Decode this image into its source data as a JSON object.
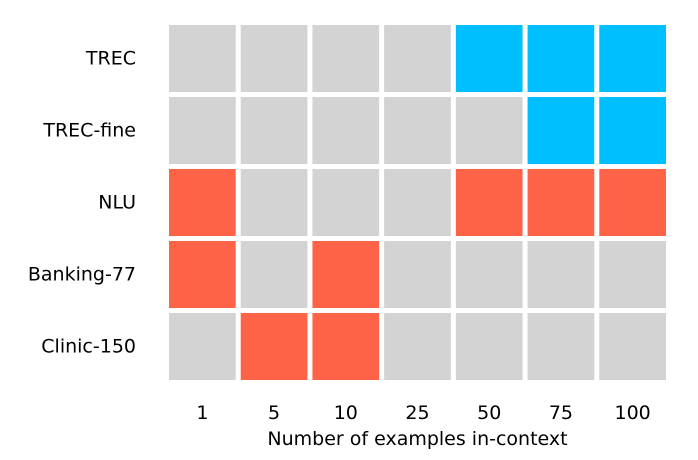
{
  "chart_data": {
    "type": "heatmap",
    "title": "",
    "xlabel": "Number of examples in-context",
    "ylabel": "",
    "x": [
      "1",
      "5",
      "10",
      "25",
      "50",
      "75",
      "100"
    ],
    "y": [
      "TREC",
      "TREC-fine",
      "NLU",
      "Banking-77",
      "Clinic-150"
    ],
    "colors": {
      "0": "#d3d3d3",
      "1": "#00bfff",
      "-1": "#ff6347"
    },
    "values": [
      [
        0,
        0,
        0,
        0,
        1,
        1,
        1
      ],
      [
        0,
        0,
        0,
        0,
        0,
        1,
        1
      ],
      [
        -1,
        0,
        0,
        0,
        -1,
        -1,
        -1
      ],
      [
        -1,
        0,
        -1,
        0,
        0,
        0,
        0
      ],
      [
        0,
        -1,
        -1,
        0,
        0,
        0,
        0
      ]
    ],
    "legend": "none",
    "grid": false
  }
}
